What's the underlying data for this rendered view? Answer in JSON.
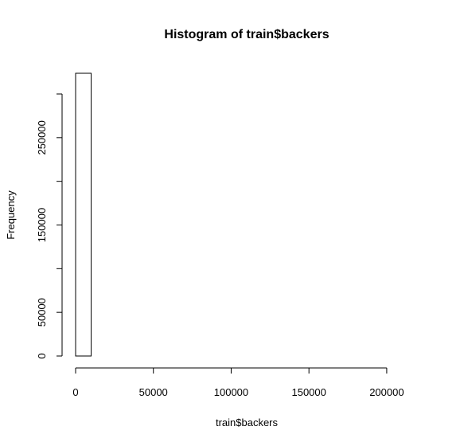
{
  "chart_data": {
    "type": "histogram",
    "title": "Histogram of train$backers",
    "xlabel": "train$backers",
    "ylabel": "Frequency",
    "bins": [
      0,
      10000,
      20000,
      30000,
      40000,
      50000,
      60000,
      70000,
      80000,
      90000,
      100000,
      110000,
      120000,
      130000,
      140000,
      150000,
      160000,
      170000,
      180000,
      190000,
      200000,
      210000,
      220000
    ],
    "counts": [
      323700,
      0,
      0,
      0,
      0,
      0,
      0,
      0,
      0,
      0,
      0,
      0,
      0,
      0,
      0,
      0,
      0,
      0,
      0,
      0,
      0,
      0
    ],
    "color": "#ffffff",
    "xlim": [
      0,
      220000
    ],
    "xticks": [
      0,
      50000,
      100000,
      150000,
      200000
    ],
    "ylim": [
      0,
      323700
    ],
    "yticks": [
      0,
      50000,
      100000,
      150000,
      200000,
      250000,
      300000
    ]
  }
}
